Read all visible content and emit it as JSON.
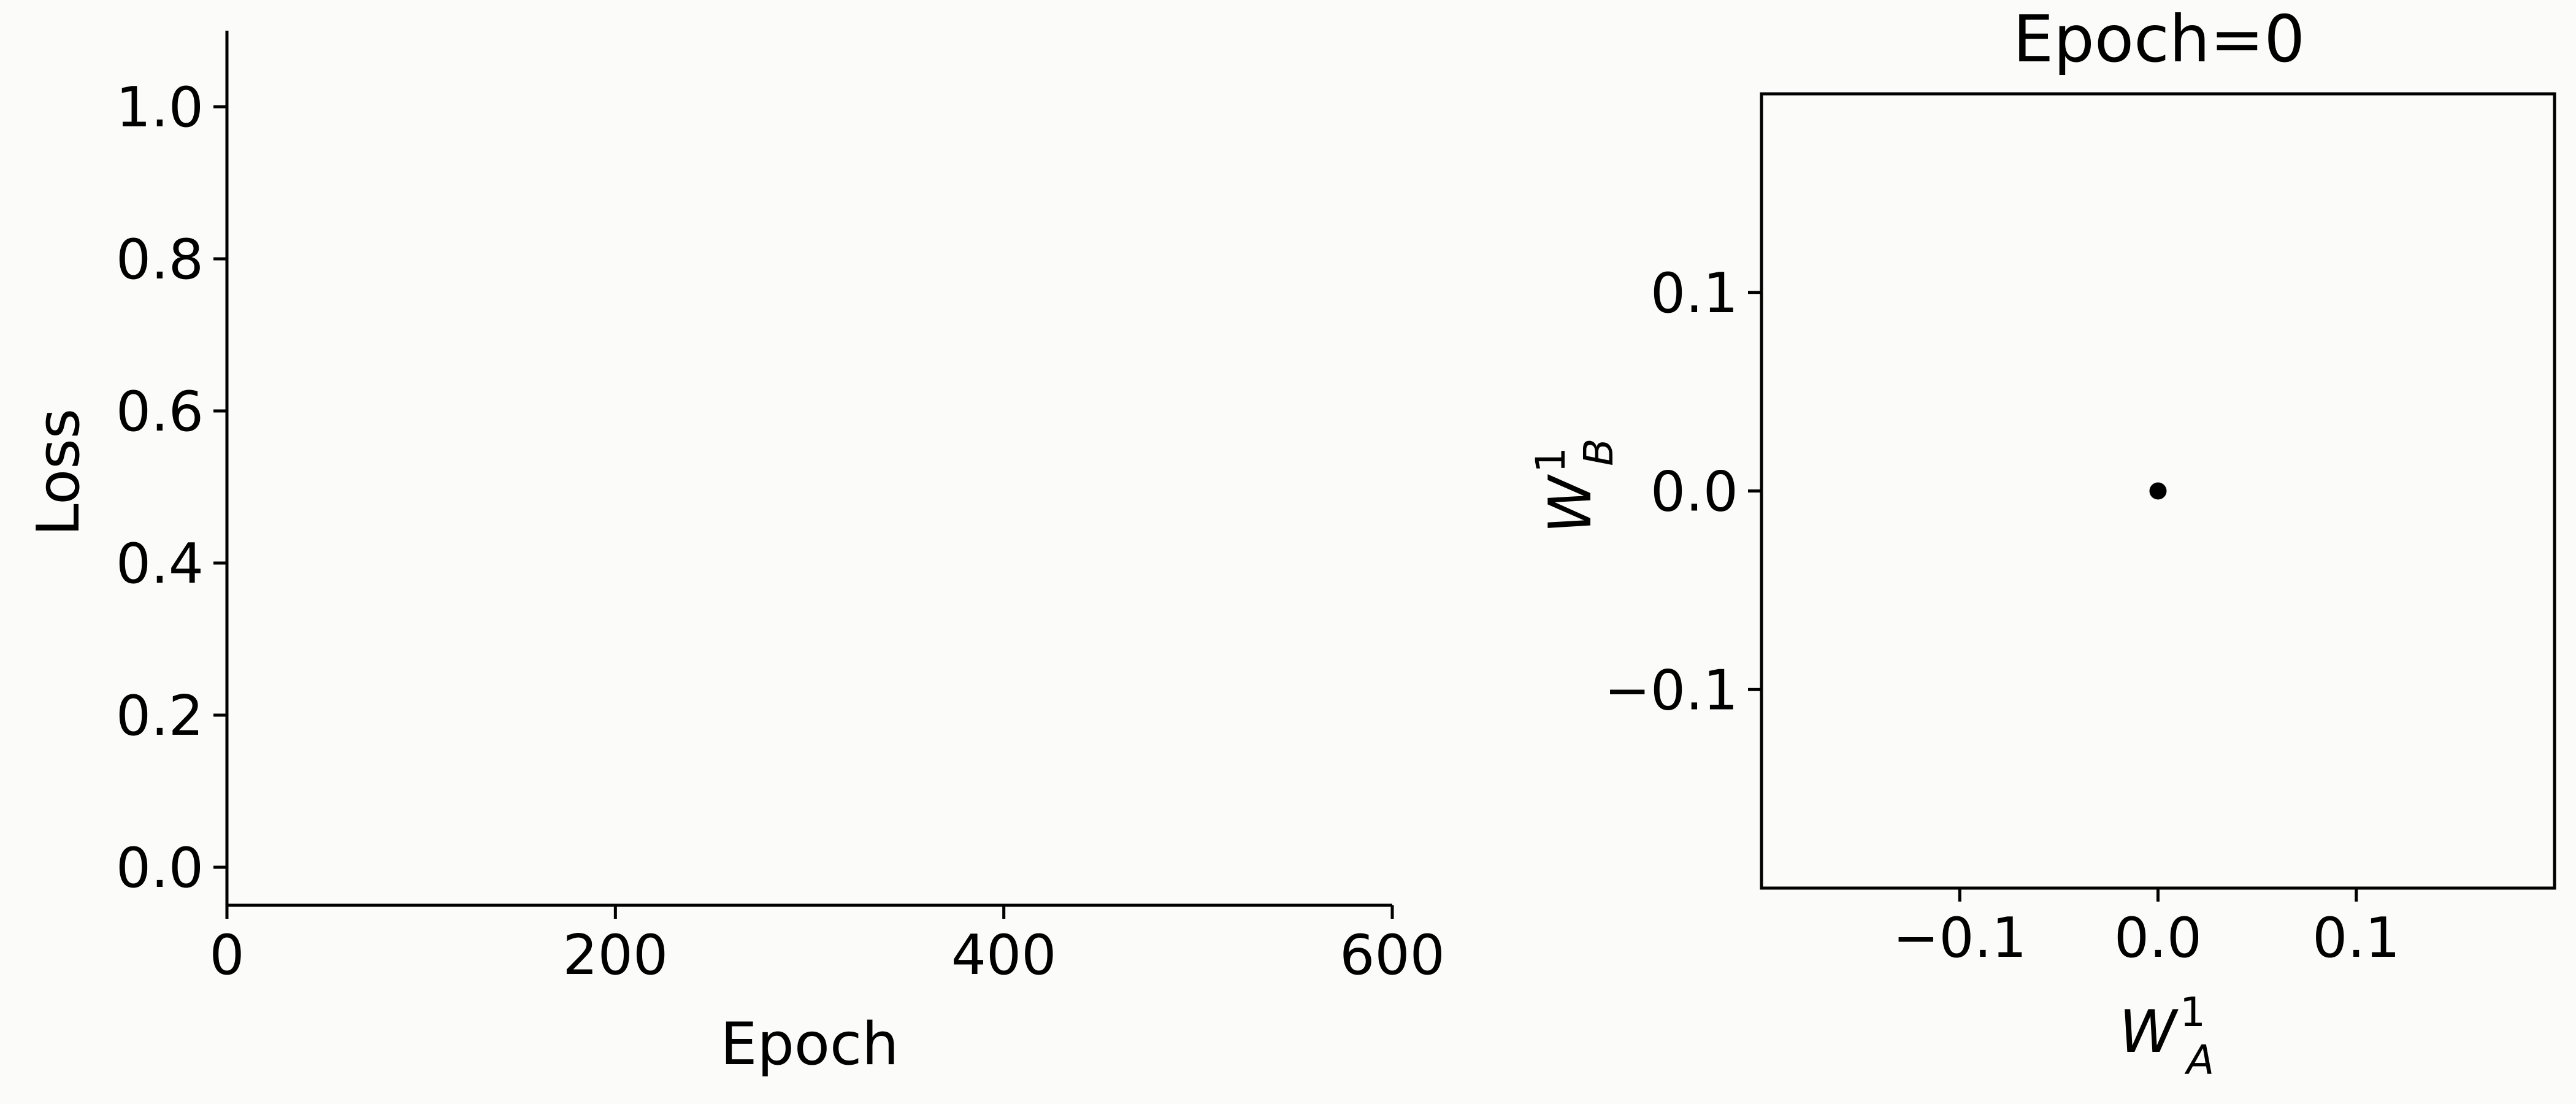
{
  "colors": {
    "background": "#fbfcfa",
    "axes": "#000000",
    "point": "#000000"
  },
  "chart_data": [
    {
      "type": "line",
      "title": "",
      "xlabel": "Epoch",
      "ylabel": "Loss",
      "xlim": [
        0,
        600
      ],
      "ylim": [
        -0.05,
        1.1
      ],
      "xticks": [
        0,
        200,
        400,
        600
      ],
      "xtick_labels": [
        "0",
        "200",
        "400",
        "600"
      ],
      "yticks": [
        0.0,
        0.2,
        0.4,
        0.6,
        0.8,
        1.0
      ],
      "ytick_labels": [
        "0.0",
        "0.2",
        "0.4",
        "0.6",
        "0.8",
        "1.0"
      ],
      "spines": "left-bottom",
      "grid": false,
      "series": [
        {
          "x": [],
          "y": []
        }
      ]
    },
    {
      "type": "scatter",
      "title": "Epoch=0",
      "xlabel": {
        "base": "W",
        "sup": "1",
        "sub": "A"
      },
      "ylabel": {
        "base": "W",
        "sup": "1",
        "sub": "B"
      },
      "xlim": [
        -0.2,
        0.2
      ],
      "ylim": [
        -0.2,
        0.2
      ],
      "xticks": [
        -0.1,
        0.0,
        0.1
      ],
      "xtick_labels": [
        "−0.1",
        "0.0",
        "0.1"
      ],
      "yticks": [
        -0.1,
        0.0,
        0.1
      ],
      "ytick_labels": [
        "−0.1",
        "0.0",
        "0.1"
      ],
      "grid": false,
      "series": [
        {
          "points": [
            {
              "x": 0.0,
              "y": 0.0
            }
          ]
        }
      ]
    }
  ]
}
